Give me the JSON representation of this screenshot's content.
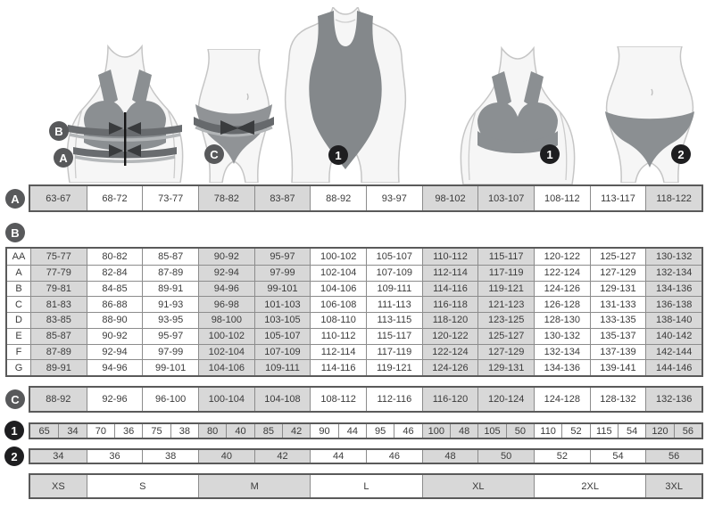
{
  "palette": {
    "cell_gray": "#d8d8d8",
    "cell_white": "#ffffff",
    "inner_border": "#8c8c8c",
    "outer_border": "#5a5a5a",
    "text": "#3b3b3b",
    "circle_gray": "#58595b",
    "circle_black": "#1e1e20",
    "garment_gray": "#8b8f92",
    "band_dark": "#696c6f",
    "arrow_dark": "#393b3d",
    "body_fill": "#f6f6f6",
    "body_line": "#c6c6c6"
  },
  "shade_pattern": [
    1,
    0,
    0,
    1,
    1,
    0,
    0,
    1,
    1,
    0,
    0,
    1
  ],
  "figure_labels": {
    "bust_band": "B",
    "underbust_band": "A",
    "hip_band": "C",
    "swimsuit": "1",
    "bra": "1",
    "brief": "2"
  },
  "row_a": {
    "label": "A",
    "cells": [
      "63-67",
      "68-72",
      "73-77",
      "78-82",
      "83-87",
      "88-92",
      "93-97",
      "98-102",
      "103-107",
      "108-112",
      "113-117",
      "118-122"
    ]
  },
  "table_b": {
    "label": "B",
    "rows": [
      {
        "label": "AA",
        "cells": [
          "75-77",
          "80-82",
          "85-87",
          "90-92",
          "95-97",
          "100-102",
          "105-107",
          "110-112",
          "115-117",
          "120-122",
          "125-127",
          "130-132"
        ]
      },
      {
        "label": "A",
        "cells": [
          "77-79",
          "82-84",
          "87-89",
          "92-94",
          "97-99",
          "102-104",
          "107-109",
          "112-114",
          "117-119",
          "122-124",
          "127-129",
          "132-134"
        ]
      },
      {
        "label": "B",
        "cells": [
          "79-81",
          "84-85",
          "89-91",
          "94-96",
          "99-101",
          "104-106",
          "109-111",
          "114-116",
          "119-121",
          "124-126",
          "129-131",
          "134-136"
        ]
      },
      {
        "label": "C",
        "cells": [
          "81-83",
          "86-88",
          "91-93",
          "96-98",
          "101-103",
          "106-108",
          "111-113",
          "116-118",
          "121-123",
          "126-128",
          "131-133",
          "136-138"
        ]
      },
      {
        "label": "D",
        "cells": [
          "83-85",
          "88-90",
          "93-95",
          "98-100",
          "103-105",
          "108-110",
          "113-115",
          "118-120",
          "123-125",
          "128-130",
          "133-135",
          "138-140"
        ]
      },
      {
        "label": "E",
        "cells": [
          "85-87",
          "90-92",
          "95-97",
          "100-102",
          "105-107",
          "110-112",
          "115-117",
          "120-122",
          "125-127",
          "130-132",
          "135-137",
          "140-142"
        ]
      },
      {
        "label": "F",
        "cells": [
          "87-89",
          "92-94",
          "97-99",
          "102-104",
          "107-109",
          "112-114",
          "117-119",
          "122-124",
          "127-129",
          "132-134",
          "137-139",
          "142-144"
        ]
      },
      {
        "label": "G",
        "cells": [
          "89-91",
          "94-96",
          "99-101",
          "104-106",
          "109-111",
          "114-116",
          "119-121",
          "124-126",
          "129-131",
          "134-136",
          "139-141",
          "144-146"
        ]
      }
    ]
  },
  "row_c": {
    "label": "C",
    "cells": [
      "88-92",
      "92-96",
      "96-100",
      "100-104",
      "104-108",
      "108-112",
      "112-116",
      "116-120",
      "120-124",
      "124-128",
      "128-132",
      "132-136"
    ]
  },
  "row_1": {
    "label": "1",
    "cells": [
      "65",
      "34",
      "70",
      "36",
      "75",
      "38",
      "80",
      "40",
      "85",
      "42",
      "90",
      "44",
      "95",
      "46",
      "100",
      "48",
      "105",
      "50",
      "110",
      "52",
      "115",
      "54",
      "120",
      "56"
    ]
  },
  "row_2": {
    "label": "2",
    "cells": [
      "34",
      "36",
      "38",
      "40",
      "42",
      "44",
      "46",
      "48",
      "50",
      "52",
      "54",
      "56"
    ]
  },
  "sizes": {
    "cells": [
      {
        "label": "XS",
        "span": 1
      },
      {
        "label": "S",
        "span": 2
      },
      {
        "label": "M",
        "span": 2
      },
      {
        "label": "L",
        "span": 2
      },
      {
        "label": "XL",
        "span": 2
      },
      {
        "label": "2XL",
        "span": 2
      },
      {
        "label": "3XL",
        "span": 1
      }
    ]
  }
}
